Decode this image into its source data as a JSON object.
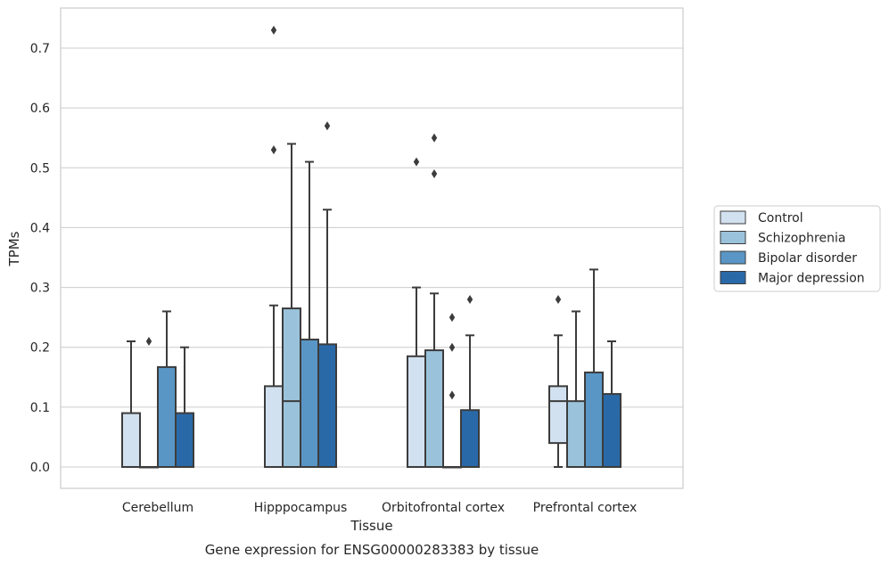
{
  "chart_data": {
    "type": "boxplot",
    "title": "",
    "xlabel": "Tissue",
    "ylabel": "TPMs",
    "caption": "Gene expression for ENSG00000283383 by tissue",
    "ylim": [
      -0.035,
      0.77
    ],
    "yticks": [
      "0.0",
      "0.1",
      "0.2",
      "0.3",
      "0.4",
      "0.5",
      "0.6",
      "0.7"
    ],
    "grid": "horizontal",
    "legend_position": "right",
    "categories": [
      "Cerebellum",
      "Hipppocampus",
      "Orbitofrontal cortex",
      "Prefrontal cortex"
    ],
    "series": [
      {
        "name": "Control",
        "color": "#d2e1f0",
        "boxes": [
          {
            "whislo": 0.0,
            "q1": 0.0,
            "med": 0.0,
            "q3": 0.09,
            "whishi": 0.21,
            "fliers": []
          },
          {
            "whislo": 0.0,
            "q1": 0.0,
            "med": 0.0,
            "q3": 0.135,
            "whishi": 0.27,
            "fliers": [
              0.53,
              0.73
            ]
          },
          {
            "whislo": 0.0,
            "q1": 0.0,
            "med": 0.0,
            "q3": 0.185,
            "whishi": 0.3,
            "fliers": [
              0.51
            ]
          },
          {
            "whislo": 0.0,
            "q1": 0.04,
            "med": 0.11,
            "q3": 0.135,
            "whishi": 0.22,
            "fliers": [
              0.28
            ]
          }
        ]
      },
      {
        "name": "Schizophrenia",
        "color": "#9ac3db",
        "boxes": [
          {
            "whislo": 0.0,
            "q1": 0.0,
            "med": 0.0,
            "q3": 0.0,
            "whishi": 0.0,
            "fliers": [
              0.21
            ]
          },
          {
            "whislo": 0.0,
            "q1": 0.0,
            "med": 0.11,
            "q3": 0.265,
            "whishi": 0.54,
            "fliers": []
          },
          {
            "whislo": 0.0,
            "q1": 0.0,
            "med": 0.0,
            "q3": 0.195,
            "whishi": 0.29,
            "fliers": [
              0.49,
              0.55
            ]
          },
          {
            "whislo": 0.0,
            "q1": 0.0,
            "med": 0.0,
            "q3": 0.11,
            "whishi": 0.26,
            "fliers": []
          }
        ]
      },
      {
        "name": "Bipolar disorder",
        "color": "#5996c5",
        "boxes": [
          {
            "whislo": 0.0,
            "q1": 0.0,
            "med": 0.0,
            "q3": 0.167,
            "whishi": 0.26,
            "fliers": []
          },
          {
            "whislo": 0.0,
            "q1": 0.0,
            "med": 0.0,
            "q3": 0.213,
            "whishi": 0.51,
            "fliers": []
          },
          {
            "whislo": 0.0,
            "q1": 0.0,
            "med": 0.0,
            "q3": 0.0,
            "whishi": 0.0,
            "fliers": [
              0.12,
              0.2,
              0.25
            ]
          },
          {
            "whislo": 0.0,
            "q1": 0.0,
            "med": 0.0,
            "q3": 0.158,
            "whishi": 0.33,
            "fliers": []
          }
        ]
      },
      {
        "name": "Major depression",
        "color": "#2a69a8",
        "boxes": [
          {
            "whislo": 0.0,
            "q1": 0.0,
            "med": 0.0,
            "q3": 0.09,
            "whishi": 0.2,
            "fliers": []
          },
          {
            "whislo": 0.0,
            "q1": 0.0,
            "med": 0.0,
            "q3": 0.205,
            "whishi": 0.43,
            "fliers": [
              0.57
            ]
          },
          {
            "whislo": 0.0,
            "q1": 0.0,
            "med": 0.0,
            "q3": 0.095,
            "whishi": 0.22,
            "fliers": [
              0.28
            ]
          },
          {
            "whislo": 0.0,
            "q1": 0.0,
            "med": 0.0,
            "q3": 0.122,
            "whishi": 0.21,
            "fliers": []
          }
        ]
      }
    ]
  }
}
